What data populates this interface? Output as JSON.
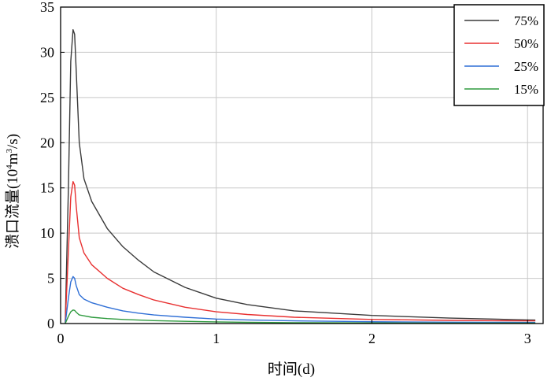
{
  "chart_data": {
    "type": "line",
    "xlabel": "时间(d)",
    "ylabel_main": "溃口流量(10",
    "ylabel_sup4": "4",
    "ylabel_mid": "m",
    "ylabel_sup3": "3",
    "ylabel_end": "/s)",
    "xlim": [
      0,
      3.1
    ],
    "ylim": [
      0,
      35
    ],
    "xticks": [
      0,
      1,
      2,
      3
    ],
    "yticks": [
      0,
      5,
      10,
      15,
      20,
      25,
      30,
      35
    ],
    "grid": true,
    "legend_position": "top-right",
    "series": [
      {
        "name": "75%",
        "color": "#3a3a3a",
        "points": [
          [
            0.03,
            0
          ],
          [
            0.05,
            15
          ],
          [
            0.065,
            29
          ],
          [
            0.08,
            32.5
          ],
          [
            0.09,
            32
          ],
          [
            0.1,
            28
          ],
          [
            0.12,
            20
          ],
          [
            0.15,
            16
          ],
          [
            0.2,
            13.5
          ],
          [
            0.3,
            10.5
          ],
          [
            0.4,
            8.5
          ],
          [
            0.5,
            7
          ],
          [
            0.6,
            5.7
          ],
          [
            0.8,
            4
          ],
          [
            1.0,
            2.8
          ],
          [
            1.2,
            2.1
          ],
          [
            1.5,
            1.4
          ],
          [
            2.0,
            0.9
          ],
          [
            2.5,
            0.6
          ],
          [
            3.0,
            0.4
          ],
          [
            3.05,
            0.38
          ]
        ]
      },
      {
        "name": "50%",
        "color": "#e83030",
        "points": [
          [
            0.03,
            0
          ],
          [
            0.05,
            8
          ],
          [
            0.065,
            14
          ],
          [
            0.08,
            15.7
          ],
          [
            0.09,
            15.3
          ],
          [
            0.1,
            13
          ],
          [
            0.12,
            9.5
          ],
          [
            0.15,
            7.8
          ],
          [
            0.2,
            6.5
          ],
          [
            0.3,
            5
          ],
          [
            0.4,
            3.9
          ],
          [
            0.5,
            3.2
          ],
          [
            0.6,
            2.6
          ],
          [
            0.8,
            1.8
          ],
          [
            1.0,
            1.3
          ],
          [
            1.2,
            1
          ],
          [
            1.5,
            0.7
          ],
          [
            2.0,
            0.45
          ],
          [
            2.5,
            0.35
          ],
          [
            3.0,
            0.3
          ],
          [
            3.05,
            0.3
          ]
        ]
      },
      {
        "name": "25%",
        "color": "#2f6fd6",
        "points": [
          [
            0.03,
            0
          ],
          [
            0.05,
            2.8
          ],
          [
            0.065,
            4.6
          ],
          [
            0.08,
            5.2
          ],
          [
            0.09,
            5
          ],
          [
            0.1,
            4.2
          ],
          [
            0.12,
            3.2
          ],
          [
            0.15,
            2.7
          ],
          [
            0.2,
            2.3
          ],
          [
            0.3,
            1.8
          ],
          [
            0.4,
            1.4
          ],
          [
            0.5,
            1.15
          ],
          [
            0.6,
            0.95
          ],
          [
            0.8,
            0.7
          ],
          [
            1.0,
            0.5
          ],
          [
            1.2,
            0.4
          ],
          [
            1.5,
            0.3
          ],
          [
            2.0,
            0.2
          ],
          [
            2.5,
            0.15
          ],
          [
            3.0,
            0.12
          ],
          [
            3.05,
            0.12
          ]
        ]
      },
      {
        "name": "15%",
        "color": "#2e9a3e",
        "points": [
          [
            0.03,
            0
          ],
          [
            0.05,
            0.8
          ],
          [
            0.065,
            1.3
          ],
          [
            0.08,
            1.5
          ],
          [
            0.09,
            1.45
          ],
          [
            0.1,
            1.25
          ],
          [
            0.12,
            0.95
          ],
          [
            0.15,
            0.85
          ],
          [
            0.2,
            0.7
          ],
          [
            0.3,
            0.55
          ],
          [
            0.4,
            0.45
          ],
          [
            0.5,
            0.38
          ],
          [
            0.6,
            0.32
          ],
          [
            0.8,
            0.24
          ],
          [
            1.0,
            0.18
          ],
          [
            1.2,
            0.14
          ],
          [
            1.5,
            0.1
          ],
          [
            2.0,
            0.07
          ],
          [
            2.5,
            0.05
          ],
          [
            3.0,
            0.04
          ],
          [
            3.05,
            0.04
          ]
        ]
      }
    ]
  }
}
